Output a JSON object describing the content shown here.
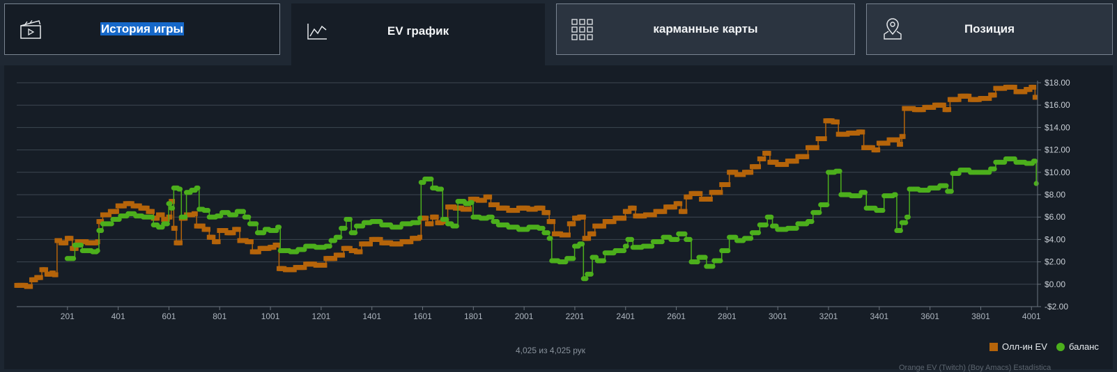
{
  "tabs": [
    {
      "id": "history",
      "label": "История игры",
      "icon": "clapperboard-icon",
      "active": false
    },
    {
      "id": "ev",
      "label": "EV график",
      "icon": "line-chart-icon",
      "active": true
    },
    {
      "id": "hands",
      "label": "карманные карты",
      "icon": "grid-icon",
      "active": false
    },
    {
      "id": "position",
      "label": "Позиция",
      "icon": "location-pin-icon",
      "active": false
    }
  ],
  "footer": {
    "hands_count": "4,025 из 4,025 рук",
    "credit": "Orange EV (Twitch) (Boy Amacs) Estadística"
  },
  "colors": {
    "ev_series": "#b5640a",
    "balance_series": "#4caf1c",
    "grid": "#3e4752",
    "background": "#161d26"
  },
  "chart_data": {
    "type": "line",
    "title": "",
    "xlabel": "",
    "ylabel": "",
    "xlim": [
      1,
      4025
    ],
    "ylim": [
      -2,
      18
    ],
    "x_ticks": [
      201,
      401,
      601,
      801,
      1001,
      1201,
      1401,
      1601,
      1801,
      2001,
      2201,
      2401,
      2601,
      2801,
      3001,
      3201,
      3401,
      3601,
      3801,
      4001
    ],
    "y_ticks": [
      -2,
      0,
      2,
      4,
      6,
      8,
      10,
      12,
      14,
      16,
      18
    ],
    "y_tick_labels": [
      "-$2.00",
      "$0.00",
      "$2.00",
      "$4.00",
      "$6.00",
      "$8.00",
      "$10.00",
      "$12.00",
      "$14.00",
      "$16.00",
      "$18.00"
    ],
    "grid": true,
    "legend_position": "bottom-right",
    "series": [
      {
        "name": "Олл-ин EV",
        "marker": "square",
        "points": [
          [
            1,
            -0.1
          ],
          [
            40,
            -0.2
          ],
          [
            60,
            0.4
          ],
          [
            80,
            0.6
          ],
          [
            100,
            1.3
          ],
          [
            120,
            0.9
          ],
          [
            140,
            1.0
          ],
          [
            150,
            0.85
          ],
          [
            160,
            3.9
          ],
          [
            175,
            3.7
          ],
          [
            200,
            4.1
          ],
          [
            220,
            3.2
          ],
          [
            240,
            3.8
          ],
          [
            280,
            3.7
          ],
          [
            320,
            3.8
          ],
          [
            325,
            5.6
          ],
          [
            340,
            6.2
          ],
          [
            370,
            6.5
          ],
          [
            400,
            7.0
          ],
          [
            430,
            7.2
          ],
          [
            460,
            7.0
          ],
          [
            490,
            6.8
          ],
          [
            520,
            6.5
          ],
          [
            540,
            5.9
          ],
          [
            560,
            6.2
          ],
          [
            580,
            5.8
          ],
          [
            600,
            6.0
          ],
          [
            610,
            7.4
          ],
          [
            620,
            5.0
          ],
          [
            630,
            3.7
          ],
          [
            650,
            5.9
          ],
          [
            670,
            6.2
          ],
          [
            700,
            6.3
          ],
          [
            710,
            5.2
          ],
          [
            740,
            4.9
          ],
          [
            760,
            4.2
          ],
          [
            780,
            3.8
          ],
          [
            800,
            4.8
          ],
          [
            830,
            4.6
          ],
          [
            860,
            4.9
          ],
          [
            880,
            3.9
          ],
          [
            910,
            3.8
          ],
          [
            930,
            2.9
          ],
          [
            960,
            3.2
          ],
          [
            1000,
            3.3
          ],
          [
            1020,
            3.5
          ],
          [
            1035,
            1.4
          ],
          [
            1060,
            1.3
          ],
          [
            1100,
            1.5
          ],
          [
            1140,
            1.8
          ],
          [
            1180,
            1.7
          ],
          [
            1220,
            2.3
          ],
          [
            1260,
            2.6
          ],
          [
            1290,
            3.2
          ],
          [
            1320,
            3.0
          ],
          [
            1340,
            2.9
          ],
          [
            1360,
            3.6
          ],
          [
            1400,
            4.0
          ],
          [
            1440,
            3.7
          ],
          [
            1480,
            3.6
          ],
          [
            1520,
            3.8
          ],
          [
            1560,
            4.1
          ],
          [
            1590,
            4.2
          ],
          [
            1595,
            5.9
          ],
          [
            1620,
            5.4
          ],
          [
            1640,
            6.0
          ],
          [
            1660,
            5.5
          ],
          [
            1680,
            5.6
          ],
          [
            1700,
            6.9
          ],
          [
            1730,
            6.8
          ],
          [
            1760,
            6.7
          ],
          [
            1790,
            7.6
          ],
          [
            1820,
            7.5
          ],
          [
            1850,
            7.8
          ],
          [
            1870,
            7.1
          ],
          [
            1900,
            6.8
          ],
          [
            1940,
            6.6
          ],
          [
            1980,
            6.8
          ],
          [
            2020,
            6.7
          ],
          [
            2050,
            6.8
          ],
          [
            2080,
            6.4
          ],
          [
            2100,
            5.6
          ],
          [
            2120,
            4.5
          ],
          [
            2150,
            4.4
          ],
          [
            2180,
            5.4
          ],
          [
            2200,
            5.9
          ],
          [
            2220,
            6.0
          ],
          [
            2240,
            4.1
          ],
          [
            2260,
            4.5
          ],
          [
            2280,
            5.2
          ],
          [
            2320,
            5.6
          ],
          [
            2360,
            5.9
          ],
          [
            2400,
            6.5
          ],
          [
            2420,
            6.8
          ],
          [
            2440,
            6.1
          ],
          [
            2480,
            6.2
          ],
          [
            2520,
            6.5
          ],
          [
            2560,
            6.9
          ],
          [
            2600,
            7.2
          ],
          [
            2620,
            6.5
          ],
          [
            2640,
            7.8
          ],
          [
            2660,
            8.1
          ],
          [
            2700,
            7.6
          ],
          [
            2740,
            8.2
          ],
          [
            2780,
            8.9
          ],
          [
            2810,
            10.0
          ],
          [
            2840,
            9.8
          ],
          [
            2870,
            10.0
          ],
          [
            2900,
            10.5
          ],
          [
            2930,
            11.2
          ],
          [
            2950,
            11.7
          ],
          [
            2970,
            10.9
          ],
          [
            3000,
            10.7
          ],
          [
            3040,
            11.0
          ],
          [
            3080,
            11.4
          ],
          [
            3120,
            12.2
          ],
          [
            3160,
            13.0
          ],
          [
            3190,
            14.6
          ],
          [
            3220,
            14.5
          ],
          [
            3240,
            13.4
          ],
          [
            3280,
            13.5
          ],
          [
            3320,
            13.6
          ],
          [
            3340,
            12.2
          ],
          [
            3380,
            12.0
          ],
          [
            3400,
            12.6
          ],
          [
            3440,
            12.9
          ],
          [
            3480,
            12.5
          ],
          [
            3490,
            13.2
          ],
          [
            3500,
            15.7
          ],
          [
            3540,
            15.6
          ],
          [
            3580,
            15.8
          ],
          [
            3620,
            16.0
          ],
          [
            3660,
            15.6
          ],
          [
            3680,
            16.5
          ],
          [
            3720,
            16.8
          ],
          [
            3760,
            16.5
          ],
          [
            3800,
            16.6
          ],
          [
            3840,
            16.9
          ],
          [
            3860,
            17.5
          ],
          [
            3900,
            17.6
          ],
          [
            3940,
            17.2
          ],
          [
            3980,
            17.4
          ],
          [
            4000,
            17.6
          ],
          [
            4015,
            16.7
          ]
        ]
      },
      {
        "name": "баланс",
        "marker": "circle",
        "points": [
          [
            200,
            2.3
          ],
          [
            230,
            3.5
          ],
          [
            260,
            3.0
          ],
          [
            300,
            2.9
          ],
          [
            320,
            3.0
          ],
          [
            325,
            4.8
          ],
          [
            340,
            5.4
          ],
          [
            380,
            5.8
          ],
          [
            410,
            6.1
          ],
          [
            440,
            6.3
          ],
          [
            470,
            6.1
          ],
          [
            500,
            6.0
          ],
          [
            540,
            5.3
          ],
          [
            560,
            5.1
          ],
          [
            580,
            5.4
          ],
          [
            600,
            7.2
          ],
          [
            610,
            6.8
          ],
          [
            620,
            8.6
          ],
          [
            640,
            8.5
          ],
          [
            650,
            6.0
          ],
          [
            670,
            8.2
          ],
          [
            690,
            8.4
          ],
          [
            710,
            8.6
          ],
          [
            720,
            6.7
          ],
          [
            740,
            6.6
          ],
          [
            760,
            6.0
          ],
          [
            790,
            6.1
          ],
          [
            810,
            6.4
          ],
          [
            840,
            6.2
          ],
          [
            870,
            6.5
          ],
          [
            900,
            6.0
          ],
          [
            920,
            5.4
          ],
          [
            950,
            4.6
          ],
          [
            980,
            4.9
          ],
          [
            1000,
            4.8
          ],
          [
            1030,
            5.1
          ],
          [
            1040,
            3.0
          ],
          [
            1080,
            2.9
          ],
          [
            1110,
            3.1
          ],
          [
            1140,
            3.4
          ],
          [
            1180,
            3.3
          ],
          [
            1220,
            3.4
          ],
          [
            1240,
            3.9
          ],
          [
            1260,
            4.2
          ],
          [
            1280,
            5.0
          ],
          [
            1300,
            5.8
          ],
          [
            1320,
            4.6
          ],
          [
            1340,
            5.2
          ],
          [
            1370,
            5.5
          ],
          [
            1400,
            5.6
          ],
          [
            1440,
            5.3
          ],
          [
            1480,
            5.1
          ],
          [
            1520,
            5.4
          ],
          [
            1560,
            5.5
          ],
          [
            1590,
            5.9
          ],
          [
            1595,
            9.1
          ],
          [
            1610,
            9.4
          ],
          [
            1640,
            8.6
          ],
          [
            1660,
            8.5
          ],
          [
            1680,
            5.8
          ],
          [
            1700,
            5.4
          ],
          [
            1720,
            5.2
          ],
          [
            1740,
            7.4
          ],
          [
            1770,
            7.2
          ],
          [
            1790,
            7.3
          ],
          [
            1800,
            6.0
          ],
          [
            1830,
            5.9
          ],
          [
            1860,
            6.0
          ],
          [
            1880,
            5.6
          ],
          [
            1900,
            5.3
          ],
          [
            1940,
            5.1
          ],
          [
            1980,
            4.9
          ],
          [
            2020,
            5.1
          ],
          [
            2060,
            5.0
          ],
          [
            2080,
            4.6
          ],
          [
            2100,
            4.1
          ],
          [
            2110,
            2.1
          ],
          [
            2140,
            2.0
          ],
          [
            2170,
            2.3
          ],
          [
            2200,
            3.4
          ],
          [
            2220,
            3.6
          ],
          [
            2235,
            0.5
          ],
          [
            2250,
            0.9
          ],
          [
            2270,
            2.4
          ],
          [
            2290,
            2.1
          ],
          [
            2320,
            2.8
          ],
          [
            2360,
            3.0
          ],
          [
            2400,
            3.4
          ],
          [
            2410,
            4.0
          ],
          [
            2430,
            3.3
          ],
          [
            2470,
            3.4
          ],
          [
            2510,
            3.8
          ],
          [
            2550,
            4.2
          ],
          [
            2580,
            4.0
          ],
          [
            2610,
            4.5
          ],
          [
            2640,
            4.0
          ],
          [
            2660,
            2.0
          ],
          [
            2690,
            2.4
          ],
          [
            2720,
            1.6
          ],
          [
            2750,
            2.1
          ],
          [
            2780,
            3.0
          ],
          [
            2810,
            4.2
          ],
          [
            2840,
            3.9
          ],
          [
            2870,
            4.1
          ],
          [
            2900,
            4.6
          ],
          [
            2930,
            5.3
          ],
          [
            2960,
            6.0
          ],
          [
            2980,
            5.2
          ],
          [
            3000,
            4.9
          ],
          [
            3040,
            5.0
          ],
          [
            3080,
            5.4
          ],
          [
            3120,
            5.6
          ],
          [
            3140,
            6.4
          ],
          [
            3170,
            7.1
          ],
          [
            3200,
            10.0
          ],
          [
            3230,
            10.1
          ],
          [
            3250,
            8.0
          ],
          [
            3290,
            7.9
          ],
          [
            3330,
            8.2
          ],
          [
            3350,
            6.8
          ],
          [
            3390,
            6.6
          ],
          [
            3420,
            7.9
          ],
          [
            3460,
            8.0
          ],
          [
            3470,
            4.8
          ],
          [
            3490,
            5.5
          ],
          [
            3510,
            6.0
          ],
          [
            3520,
            8.5
          ],
          [
            3560,
            8.4
          ],
          [
            3600,
            8.6
          ],
          [
            3640,
            8.8
          ],
          [
            3670,
            8.3
          ],
          [
            3690,
            9.9
          ],
          [
            3720,
            10.2
          ],
          [
            3760,
            10.0
          ],
          [
            3800,
            10.0
          ],
          [
            3840,
            10.3
          ],
          [
            3860,
            10.9
          ],
          [
            3900,
            11.2
          ],
          [
            3940,
            10.9
          ],
          [
            3980,
            10.8
          ],
          [
            4010,
            11.0
          ],
          [
            4020,
            9.0
          ]
        ]
      }
    ]
  }
}
